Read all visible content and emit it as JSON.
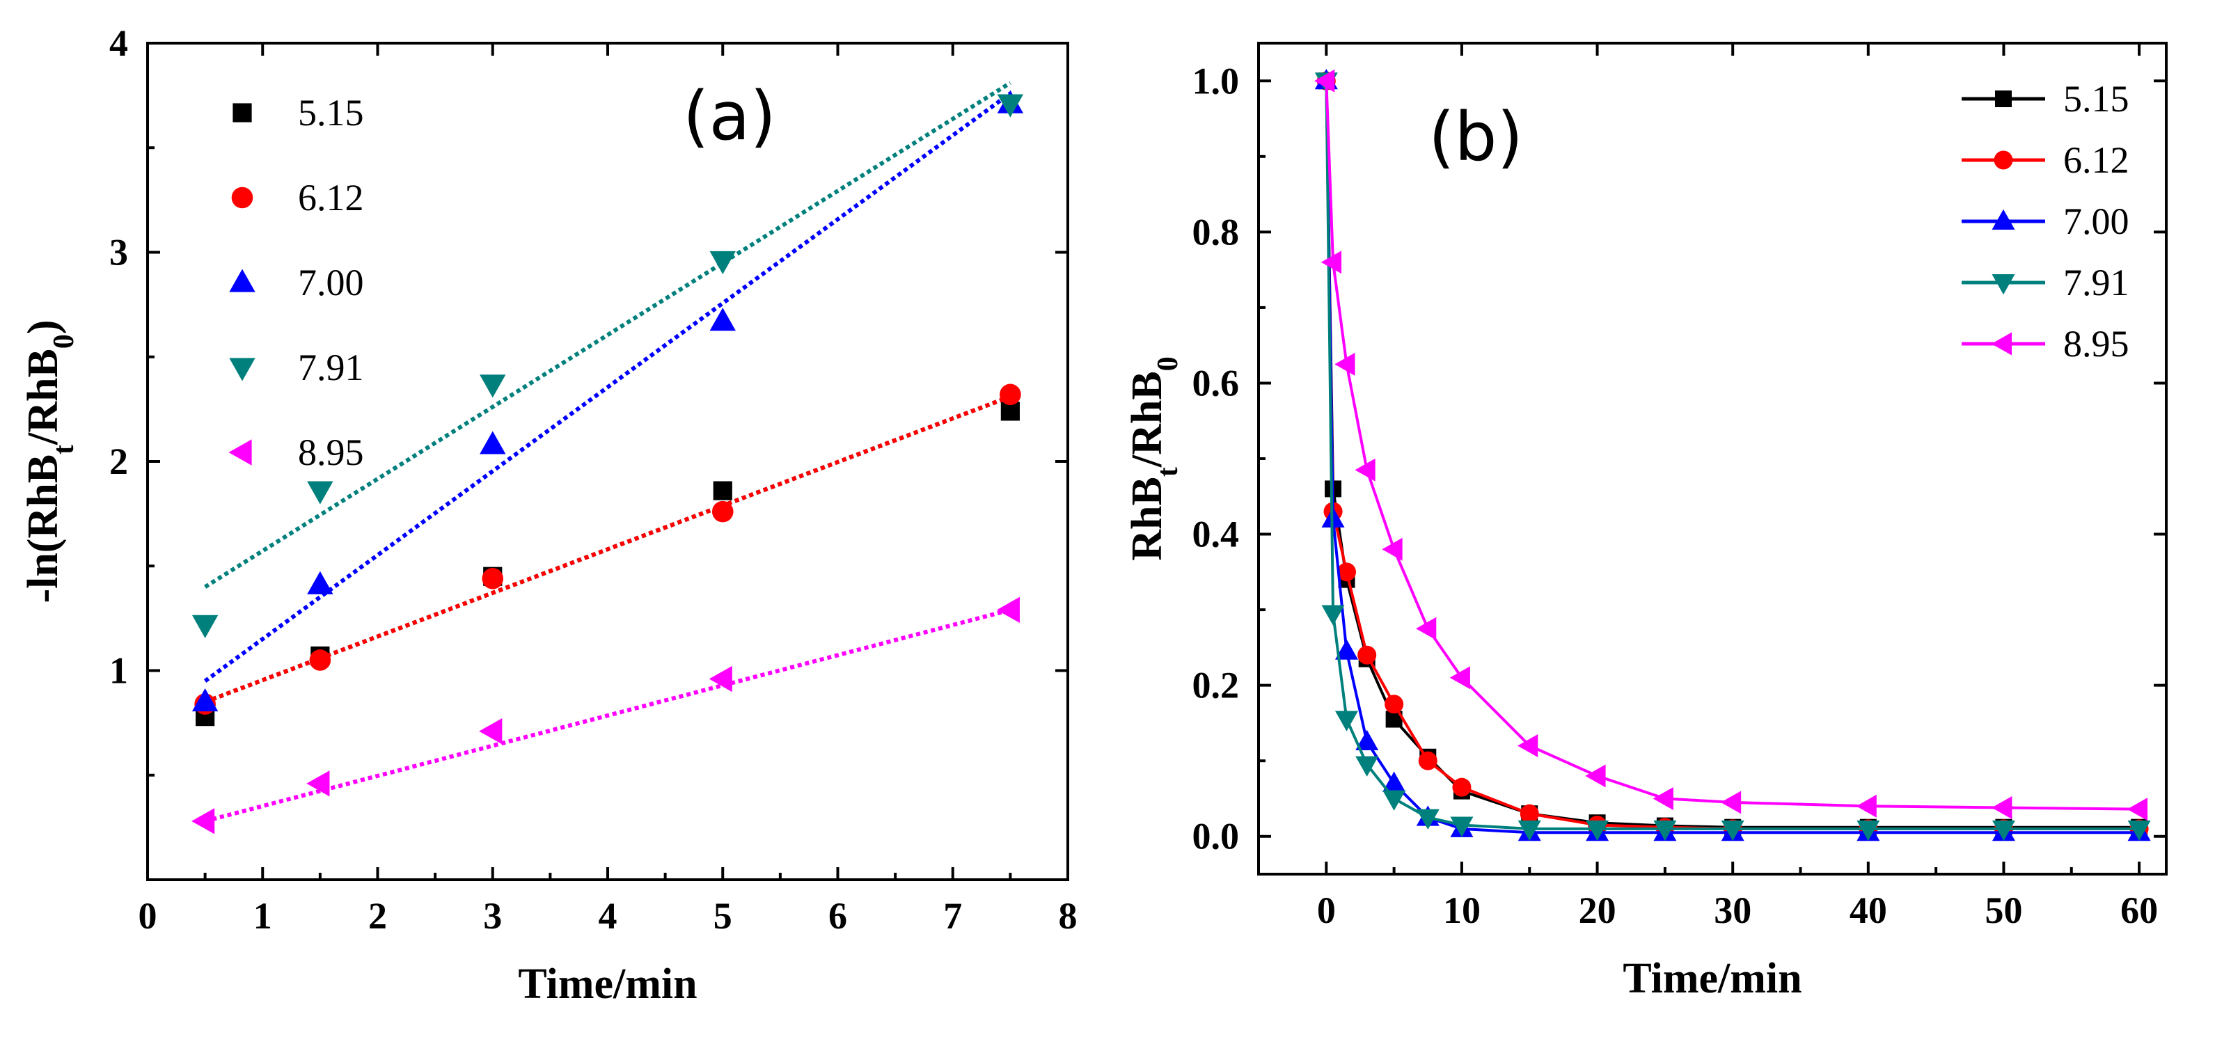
{
  "chart_data": [
    {
      "type": "scatter",
      "panel_label": "(a)",
      "xlabel": "Time/min",
      "ylabel_parts": [
        "-ln(RhB",
        "t",
        "/RhB",
        "0",
        ")"
      ],
      "xlim": [
        0,
        8
      ],
      "ylim": [
        0,
        4
      ],
      "xticks": [
        0,
        1,
        2,
        3,
        4,
        5,
        6,
        7,
        8
      ],
      "yticks": [
        1,
        2,
        3,
        4
      ],
      "legend_position": "top-left",
      "fit_lines": true,
      "series": [
        {
          "name": "5.15",
          "marker": "square",
          "color": "#000000",
          "x": [
            0.5,
            1.5,
            3,
            5,
            7.5
          ],
          "y": [
            0.78,
            1.07,
            1.45,
            1.86,
            2.24
          ],
          "fit": [
            [
              0.5,
              0.85
            ],
            [
              7.5,
              2.31
            ]
          ]
        },
        {
          "name": "6.12",
          "marker": "circle",
          "color": "#ff0000",
          "x": [
            0.5,
            1.5,
            3,
            5,
            7.5
          ],
          "y": [
            0.84,
            1.05,
            1.44,
            1.76,
            2.32
          ],
          "fit": [
            [
              0.5,
              0.85
            ],
            [
              7.5,
              2.31
            ]
          ]
        },
        {
          "name": "7.00",
          "marker": "triangle-up",
          "color": "#0000ff",
          "x": [
            0.5,
            1.5,
            3,
            5,
            7.5
          ],
          "y": [
            0.85,
            1.41,
            2.08,
            2.67,
            3.71
          ],
          "fit": [
            [
              0.5,
              0.95
            ],
            [
              7.5,
              3.76
            ]
          ]
        },
        {
          "name": "7.91",
          "marker": "triangle-down",
          "color": "#00807c",
          "x": [
            0.5,
            1.5,
            3,
            5,
            7.5
          ],
          "y": [
            1.22,
            1.86,
            2.37,
            2.96,
            3.71
          ],
          "fit": [
            [
              0.5,
              1.4
            ],
            [
              7.5,
              3.81
            ]
          ]
        },
        {
          "name": "8.95",
          "marker": "triangle-left",
          "color": "#ff00ff",
          "x": [
            0.5,
            1.5,
            3,
            5,
            7.5
          ],
          "y": [
            0.28,
            0.46,
            0.71,
            0.96,
            1.29
          ],
          "fit": [
            [
              0.5,
              0.28
            ],
            [
              7.5,
              1.29
            ]
          ]
        }
      ]
    },
    {
      "type": "line",
      "panel_label": "(b)",
      "xlabel": "Time/min",
      "ylabel_parts": [
        "RhB",
        "t",
        "/RhB",
        "0"
      ],
      "xlim": [
        -5,
        62
      ],
      "ylim": [
        -0.05,
        1.05
      ],
      "xticks": [
        0,
        10,
        20,
        30,
        40,
        50,
        60
      ],
      "yticks": [
        0.0,
        0.2,
        0.4,
        0.6,
        0.8,
        1.0
      ],
      "ytick_labels": [
        "0.0",
        "0.2",
        "0.4",
        "0.6",
        "0.8",
        "1.0"
      ],
      "legend_position": "top-right",
      "series": [
        {
          "name": "5.15",
          "marker": "square",
          "color": "#000000",
          "x": [
            0,
            0.5,
            1.5,
            3,
            5,
            7.5,
            10,
            15,
            20,
            25,
            30,
            40,
            50,
            60
          ],
          "y": [
            1.0,
            0.46,
            0.34,
            0.235,
            0.155,
            0.105,
            0.06,
            0.03,
            0.018,
            0.014,
            0.012,
            0.012,
            0.012,
            0.012
          ]
        },
        {
          "name": "6.12",
          "marker": "circle",
          "color": "#ff0000",
          "x": [
            0,
            0.5,
            1.5,
            3,
            5,
            7.5,
            10,
            15,
            20,
            25,
            30,
            40,
            50,
            60
          ],
          "y": [
            1.0,
            0.43,
            0.35,
            0.24,
            0.175,
            0.1,
            0.065,
            0.03,
            0.015,
            0.012,
            0.01,
            0.01,
            0.01,
            0.01
          ]
        },
        {
          "name": "7.00",
          "marker": "triangle-up",
          "color": "#0000ff",
          "x": [
            0,
            0.5,
            1.5,
            3,
            5,
            7.5,
            10,
            15,
            20,
            25,
            30,
            40,
            50,
            60
          ],
          "y": [
            1.0,
            0.42,
            0.245,
            0.125,
            0.07,
            0.025,
            0.01,
            0.005,
            0.005,
            0.005,
            0.005,
            0.005,
            0.005,
            0.005
          ]
        },
        {
          "name": "7.91",
          "marker": "triangle-down",
          "color": "#00807c",
          "x": [
            0,
            0.5,
            1.5,
            3,
            5,
            7.5,
            10,
            15,
            20,
            25,
            30,
            40,
            50,
            60
          ],
          "y": [
            1.0,
            0.295,
            0.155,
            0.095,
            0.05,
            0.025,
            0.015,
            0.01,
            0.01,
            0.01,
            0.01,
            0.01,
            0.01,
            0.01
          ]
        },
        {
          "name": "8.95",
          "marker": "triangle-left",
          "color": "#ff00ff",
          "x": [
            0,
            0.5,
            1.5,
            3,
            5,
            7.5,
            10,
            15,
            20,
            25,
            30,
            40,
            50,
            60
          ],
          "y": [
            1.0,
            0.76,
            0.625,
            0.485,
            0.38,
            0.275,
            0.21,
            0.12,
            0.08,
            0.05,
            0.045,
            0.04,
            0.038,
            0.036
          ]
        }
      ]
    }
  ]
}
